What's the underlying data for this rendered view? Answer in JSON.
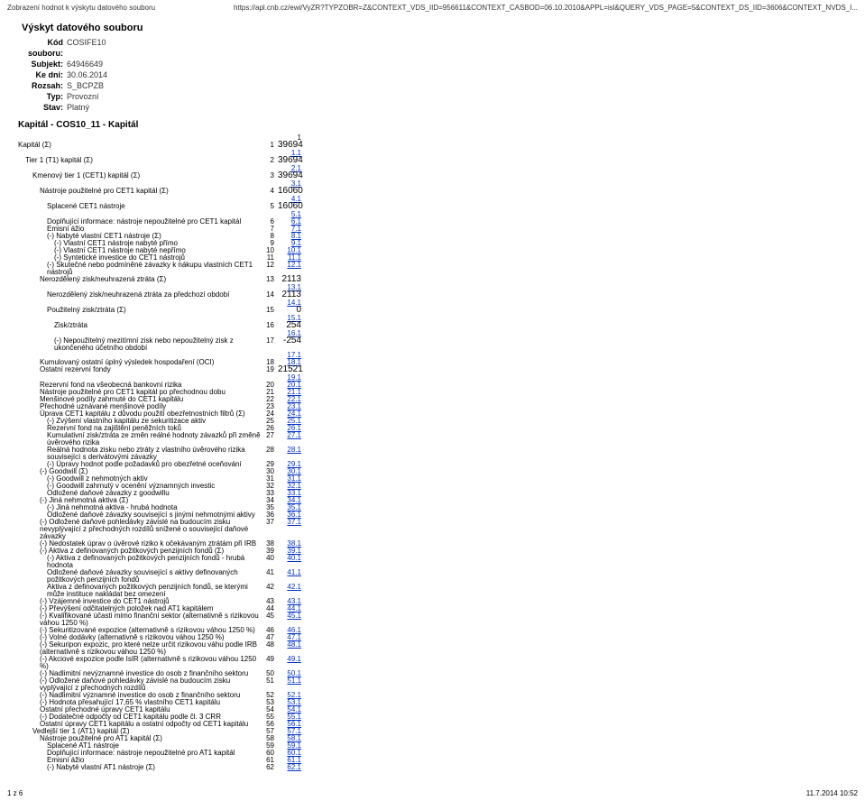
{
  "topbar": {
    "left": "Zobrazení hodnot k výskytu datového souboru",
    "right": "https://apl.cnb.cz/ewi/VyZR?TYPZOBR=Z&CONTEXT_VDS_IID=956611&CONTEXT_CASBOD=06.10.2010&APPL=isl&QUERY_VDS_PAGE=5&CONTEXT_DS_IID=3606&CONTEXT_NVDS_I..."
  },
  "title": "Výskyt datového souboru",
  "meta": [
    {
      "lbl": "Kód souboru:",
      "val": "COSIFE10"
    },
    {
      "lbl": "Subjekt:",
      "val": "64946649"
    },
    {
      "lbl": "Ke dni:",
      "val": "30.06.2014"
    },
    {
      "lbl": "Rozsah:",
      "val": "S_BCPZB"
    },
    {
      "lbl": "Typ:",
      "val": "Provozní"
    },
    {
      "lbl": "Stav:",
      "val": "Platný"
    }
  ],
  "section": "Kapitál - COS10_11 - Kapitál",
  "colhead": "1",
  "rows": [
    {
      "indent": 0,
      "label": "Kapitál (Σ)",
      "num": "1",
      "val": "39694",
      "big": true,
      "sublink": "1.1"
    },
    {
      "indent": 1,
      "label": "Tier 1 (T1) kapitál (Σ)",
      "num": "2",
      "val": "39694",
      "big": true,
      "sublink": "2.1"
    },
    {
      "indent": 2,
      "label": "Kmenový tier 1 (CET1) kapitál (Σ)",
      "num": "3",
      "val": "39694",
      "big": true,
      "sublink": "3.1"
    },
    {
      "indent": 3,
      "label": "Nástroje použitelné pro CET1 kapitál (Σ)",
      "num": "4",
      "val": "16060",
      "big": true,
      "sublink": "4.1"
    },
    {
      "indent": 4,
      "label": "Splacené CET1 nástroje",
      "num": "5",
      "val": "16060",
      "big": true,
      "sublink": "5.1"
    },
    {
      "indent": 4,
      "label": "Doplňující informace: nástroje nepoužitelné pro CET1 kapitál",
      "num": "6",
      "link": "6.1"
    },
    {
      "indent": 4,
      "label": "Emisní ážio",
      "num": "7",
      "link": "7.1"
    },
    {
      "indent": 4,
      "label": "(-) Nabyté vlastní CET1 nástroje (Σ)",
      "num": "8",
      "link": "8.1"
    },
    {
      "indent": 5,
      "label": "(-) Vlastní CET1 nástroje nabyté přímo",
      "num": "9",
      "link": "9.1"
    },
    {
      "indent": 5,
      "label": "(-) Vlastní CET1 nástroje nabyté nepřímo",
      "num": "10",
      "link": "10.1"
    },
    {
      "indent": 5,
      "label": "(-) Syntetické investice do CET1 nástrojů",
      "num": "11",
      "link": "11.1"
    },
    {
      "indent": 4,
      "label": "(-) Skutečné nebo podmíněné závazky k nákupu vlastních CET1 nástrojů",
      "num": "12",
      "link": "12.1"
    },
    {
      "indent": 3,
      "label": "Nerozdělený zisk/neuhrazená ztráta (Σ)",
      "num": "13",
      "val": "2113",
      "big": true,
      "sublink": "13.1"
    },
    {
      "indent": 4,
      "label": "Nerozdělený zisk/neuhrazená ztráta za předchozí období",
      "num": "14",
      "val": "2113",
      "big": true,
      "sublink": "14.1"
    },
    {
      "indent": 4,
      "label": "Použitelný zisk/ztráta (Σ)",
      "num": "15",
      "val": "0",
      "big": true,
      "sublink": "15.1"
    },
    {
      "indent": 5,
      "label": "Zisk/ztráta",
      "num": "16",
      "val": "254",
      "big": true,
      "sublink": "16.1"
    },
    {
      "indent": 5,
      "label": "(-) Nepoužitelný mezitímní zisk nebo nepoužitelný zisk z ukončeného účetního období",
      "num": "17",
      "val": "-254",
      "big": true,
      "sublink": "17.1"
    },
    {
      "indent": 3,
      "label": "Kumulovaný ostatní úplný výsledek hospodaření (OCI)",
      "num": "18",
      "link": "18.1"
    },
    {
      "indent": 3,
      "label": "Ostatní rezervní fondy",
      "num": "19",
      "val": "21521",
      "big": true,
      "sublink": "19.1"
    },
    {
      "indent": 3,
      "label": "Rezervní fond na všeobecná bankovní rizika",
      "num": "20",
      "link": "20.1"
    },
    {
      "indent": 3,
      "label": "Nástroje použitelné pro CET1 kapitál po přechodnou dobu",
      "num": "21",
      "link": "21.1"
    },
    {
      "indent": 3,
      "label": "Menšinové podíly zahrnuté do CET1 kapitálu",
      "num": "22",
      "link": "22.1"
    },
    {
      "indent": 3,
      "label": "Přechodné uznávané menšinové podíly",
      "num": "23",
      "link": "23.1"
    },
    {
      "indent": 3,
      "label": "Úprava CET1 kapitálu z důvodu použití obezřetnostních filtrů (Σ)",
      "num": "24",
      "link": "24.1"
    },
    {
      "indent": 4,
      "label": "(-) Zvýšení vlastního kapitálu ze sekuritizace aktiv",
      "num": "25",
      "link": "25.1"
    },
    {
      "indent": 4,
      "label": "Rezervní fond na zajištění peněžních toků",
      "num": "26",
      "link": "26.1"
    },
    {
      "indent": 4,
      "label": "Kumulativní zisk/ztráta ze změn reálné hodnoty závazků při změně úvěrového rizika",
      "num": "27",
      "link": "27.1"
    },
    {
      "indent": 4,
      "label": "Reálná hodnota zisku nebo ztráty z vlastního úvěrového rizika související s derivátovými závazky",
      "num": "28",
      "link": "28.1"
    },
    {
      "indent": 4,
      "label": "(-) Úpravy hodnot podle požadavků pro obezřetné oceňování",
      "num": "29",
      "link": "29.1"
    },
    {
      "indent": 3,
      "label": "(-) Goodwill (Σ)",
      "num": "30",
      "link": "30.1"
    },
    {
      "indent": 4,
      "label": "(-) Goodwill z nehmotných aktiv",
      "num": "31",
      "link": "31.1"
    },
    {
      "indent": 4,
      "label": "(-) Goodwill zahrnutý v ocenění významných investic",
      "num": "32",
      "link": "32.1"
    },
    {
      "indent": 4,
      "label": "Odložené daňové závazky z goodwillu",
      "num": "33",
      "link": "33.1"
    },
    {
      "indent": 3,
      "label": "(-) Jiná nehmotná aktiva (Σ)",
      "num": "34",
      "link": "34.1"
    },
    {
      "indent": 4,
      "label": "(-) Jiná nehmotná aktiva - hrubá hodnota",
      "num": "35",
      "link": "35.1"
    },
    {
      "indent": 4,
      "label": "Odložené daňové závazky související s jinými nehmotnými aktivy",
      "num": "36",
      "link": "36.1"
    },
    {
      "indent": 3,
      "label": "(-) Odložené daňové pohledávky závislé na budoucím zisku nevyplývající z přechodných rozdílů snížené o související daňové závazky",
      "num": "37",
      "link": "37.1"
    },
    {
      "indent": 3,
      "label": "(-) Nedostatek úprav o úvěrové riziko k očekávaným ztrátám při IRB",
      "num": "38",
      "link": "38.1"
    },
    {
      "indent": 3,
      "label": "(-) Aktiva z definovaných požitkových penzijních fondů (Σ)",
      "num": "39",
      "link": "39.1"
    },
    {
      "indent": 4,
      "label": "(-) Aktiva z definovaných požitkových penzijních fondů - hrubá hodnota",
      "num": "40",
      "link": "40.1"
    },
    {
      "indent": 4,
      "label": "Odložené daňové závazky související s aktivy definovaných požitkových penzijních fondů",
      "num": "41",
      "link": "41.1"
    },
    {
      "indent": 4,
      "label": "Aktiva z definovaných požitkových penzijních fondů, se kterými může instituce nakládat bez omezení",
      "num": "42",
      "link": "42.1"
    },
    {
      "indent": 3,
      "label": "(-) Vzájemné investice do CET1 nástrojů",
      "num": "43",
      "link": "43.1"
    },
    {
      "indent": 3,
      "label": "(-) Převýšení odčitatelných položek nad AT1 kapitálem",
      "num": "44",
      "link": "44.1"
    },
    {
      "indent": 3,
      "label": "(-) Kvalifikované účasti mimo finanční sektor (alternativně s rizikovou váhou 1250 %)",
      "num": "45",
      "link": "45.1"
    },
    {
      "indent": 3,
      "label": "(-) Sekuritizované expozice (alternativně s rizikovou váhou 1250 %)",
      "num": "46",
      "link": "46.1"
    },
    {
      "indent": 3,
      "label": "(-) Volné dodávky (alternativně s rizikovou váhou 1250 %)",
      "num": "47",
      "link": "47.1"
    },
    {
      "indent": 3,
      "label": "(-) Sekuripon expozic, pro které nelze určit rizikovou váhu podle IRB (alternativně s rizikovou váhou 1250 %)",
      "num": "48",
      "link": "48.1"
    },
    {
      "indent": 3,
      "label": "(-) Akciové expozice podle IsIR (alternativně s rizikovou váhou 1250 %)",
      "num": "49",
      "link": "49.1"
    },
    {
      "indent": 3,
      "label": "(-) Nadlimitní nevýznamné investice do osob z finančního sektoru",
      "num": "50",
      "link": "50.1"
    },
    {
      "indent": 3,
      "label": "(-) Odložené daňové pohledávky závislé na budoucím zisku vyplývající z přechodných rozdílů",
      "num": "51",
      "link": "51.1"
    },
    {
      "indent": 3,
      "label": "(-) Nadlimitní významné investice do osob z finančního sektoru",
      "num": "52",
      "link": "52.1"
    },
    {
      "indent": 3,
      "label": "(-) Hodnota přesahující 17,65 % vlastního CET1 kapitálu",
      "num": "53",
      "link": "53.1"
    },
    {
      "indent": 3,
      "label": "Ostatní přechodné úpravy CET1 kapitálu",
      "num": "54",
      "link": "54.1"
    },
    {
      "indent": 3,
      "label": "(-) Dodatečné odpočty od CET1 kapitálu podle čl. 3 CRR",
      "num": "55",
      "link": "55.1"
    },
    {
      "indent": 3,
      "label": "Ostatní úpravy CET1 kapitálu a ostatní odpočty od CET1 kapitálu",
      "num": "56",
      "link": "56.1"
    },
    {
      "indent": 2,
      "label": "Vedlejší tier 1 (AT1) kapitál (Σ)",
      "num": "57",
      "link": "57.1"
    },
    {
      "indent": 3,
      "label": "Nástroje použitelné pro AT1 kapitál (Σ)",
      "num": "58",
      "link": "58.1"
    },
    {
      "indent": 4,
      "label": "Splacené AT1 nástroje",
      "num": "59",
      "link": "59.1"
    },
    {
      "indent": 4,
      "label": "Doplňující informace: nástroje nepoužitelné pro AT1 kapitál",
      "num": "60",
      "link": "60.1"
    },
    {
      "indent": 4,
      "label": "Emisní ážio",
      "num": "61",
      "link": "61.1"
    },
    {
      "indent": 4,
      "label": "(-) Nabyté vlastní AT1 nástroje (Σ)",
      "num": "62",
      "link": "62.1"
    }
  ],
  "footer": {
    "left": "1 z 6",
    "right": "11.7.2014 10:52"
  }
}
